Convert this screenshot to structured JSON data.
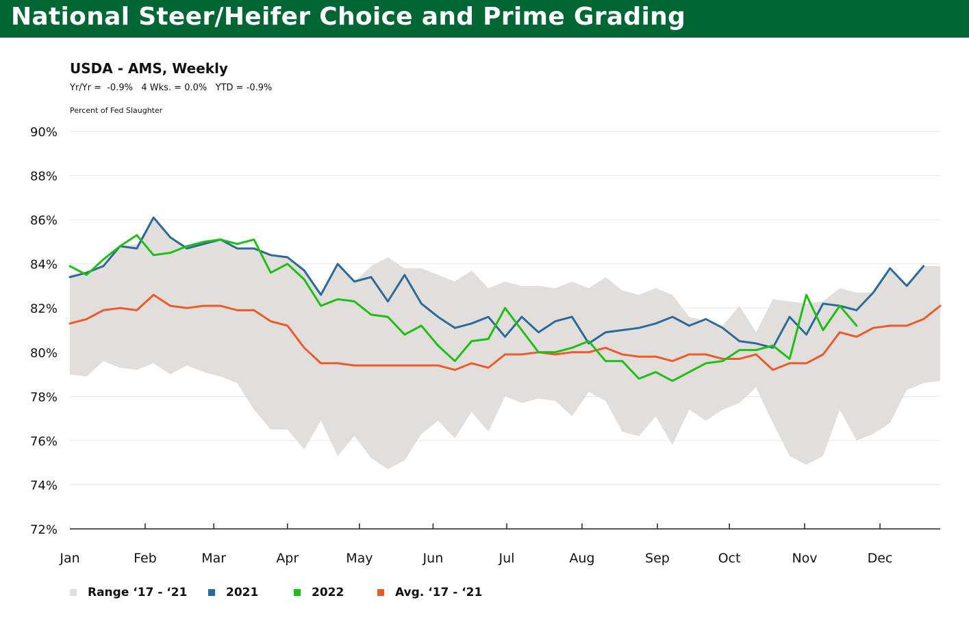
{
  "header": {
    "title": "National Steer/Heifer Choice and Prime Grading"
  },
  "subtitle": "USDA - AMS, Weekly",
  "stats": "Yr/Yr =  -0.9%   4 Wks. = 0.0%   YTD = -0.9%",
  "colors": {
    "banner": "#006633",
    "range": "#e1dedc",
    "y2021": "#2a6a99",
    "y2022": "#1cc012",
    "avg": "#ec5a2a",
    "grid": "#e6e6e6",
    "axis": "#222222"
  },
  "chart_data": {
    "type": "line",
    "ylabel": "Percent of Fed Slaughter",
    "ylim": [
      72,
      90
    ],
    "yticks": [
      "72%",
      "74%",
      "76%",
      "78%",
      "80%",
      "82%",
      "84%",
      "86%",
      "88%",
      "90%"
    ],
    "x_unit": "week of year",
    "xlim": [
      1,
      53
    ],
    "months": [
      {
        "label": "Jan",
        "week": 1.0
      },
      {
        "label": "Feb",
        "week": 5.5
      },
      {
        "label": "Mar",
        "week": 9.6
      },
      {
        "label": "Apr",
        "week": 14.0
      },
      {
        "label": "May",
        "week": 18.3
      },
      {
        "label": "Jun",
        "week": 22.7
      },
      {
        "label": "Jul",
        "week": 27.1
      },
      {
        "label": "Aug",
        "week": 31.6
      },
      {
        "label": "Sep",
        "week": 36.1
      },
      {
        "label": "Oct",
        "week": 40.4
      },
      {
        "label": "Nov",
        "week": 44.9
      },
      {
        "label": "Dec",
        "week": 49.4
      }
    ],
    "grid": true,
    "legend_position": "bottom",
    "range": {
      "name": "Range ‘17 - ‘21",
      "weeks": [
        1,
        2,
        3,
        4,
        5,
        6,
        7,
        8,
        9,
        10,
        11,
        12,
        13,
        14,
        15,
        16,
        17,
        18,
        19,
        20,
        21,
        22,
        23,
        24,
        25,
        26,
        27,
        28,
        29,
        30,
        31,
        32,
        33,
        34,
        35,
        36,
        37,
        38,
        39,
        40,
        41,
        42,
        43,
        44,
        45,
        46,
        47,
        48,
        49,
        50,
        51,
        52,
        53
      ],
      "high": [
        83.5,
        83.6,
        83.9,
        84.8,
        84.9,
        86.1,
        85.2,
        84.8,
        85.0,
        85.2,
        84.7,
        84.7,
        84.4,
        84.3,
        83.8,
        82.7,
        84.0,
        83.2,
        83.9,
        84.3,
        83.8,
        83.8,
        83.5,
        83.2,
        83.7,
        82.9,
        83.2,
        83.0,
        83.0,
        82.9,
        83.2,
        82.9,
        83.4,
        82.8,
        82.6,
        82.9,
        82.6,
        81.6,
        81.4,
        81.2,
        82.1,
        80.9,
        82.4,
        82.3,
        82.2,
        82.3,
        82.9,
        82.7,
        82.7,
        83.7,
        83.1,
        83.9,
        83.9
      ],
      "low": [
        79.0,
        78.9,
        79.6,
        79.3,
        79.2,
        79.5,
        79.0,
        79.4,
        79.1,
        78.9,
        78.6,
        77.4,
        76.5,
        76.5,
        75.6,
        76.9,
        75.3,
        76.2,
        75.2,
        74.7,
        75.1,
        76.3,
        76.9,
        76.1,
        77.3,
        76.4,
        78.0,
        77.7,
        77.9,
        77.8,
        77.1,
        78.2,
        77.8,
        76.4,
        76.2,
        77.1,
        75.8,
        77.4,
        76.9,
        77.4,
        77.7,
        78.4,
        76.8,
        75.3,
        74.9,
        75.3,
        77.4,
        76.0,
        76.3,
        76.8,
        78.3,
        78.6,
        78.7
      ]
    },
    "series": [
      {
        "name": "2021",
        "x": [
          1,
          2,
          3,
          4,
          5,
          6,
          7,
          8,
          9,
          10,
          11,
          12,
          13,
          14,
          15,
          16,
          17,
          18,
          19,
          20,
          21,
          22,
          23,
          24,
          25,
          26,
          27,
          28,
          29,
          30,
          31,
          32,
          33,
          34,
          35,
          36,
          37,
          38,
          39,
          40,
          41,
          42,
          43,
          44,
          45,
          46,
          47,
          48,
          49,
          50,
          51,
          52
        ],
        "values": [
          83.4,
          83.6,
          83.9,
          84.8,
          84.7,
          86.1,
          85.2,
          84.7,
          84.9,
          85.1,
          84.7,
          84.7,
          84.4,
          84.3,
          83.7,
          82.6,
          84.0,
          83.2,
          83.4,
          82.3,
          83.5,
          82.2,
          81.6,
          81.1,
          81.3,
          81.6,
          80.7,
          81.6,
          80.9,
          81.4,
          81.6,
          80.4,
          80.9,
          81.0,
          81.1,
          81.3,
          81.6,
          81.2,
          81.5,
          81.1,
          80.5,
          80.4,
          80.2,
          81.6,
          80.8,
          82.2,
          82.1,
          81.9,
          82.7,
          83.8,
          83.0,
          83.9
        ]
      },
      {
        "name": "2022",
        "x": [
          1,
          2,
          3,
          4,
          5,
          6,
          7,
          8,
          9,
          10,
          11,
          12,
          13,
          14,
          15,
          16,
          17,
          18,
          19,
          20,
          21,
          22,
          23,
          24,
          25,
          26,
          27,
          28,
          29,
          30,
          31,
          32,
          33,
          34,
          35,
          36,
          37,
          38,
          39,
          40,
          41,
          42,
          43,
          44,
          45,
          46,
          47,
          48
        ],
        "values": [
          83.9,
          83.5,
          84.2,
          84.8,
          85.3,
          84.4,
          84.5,
          84.8,
          85.0,
          85.1,
          84.9,
          85.1,
          83.6,
          84.0,
          83.3,
          82.1,
          82.4,
          82.3,
          81.7,
          81.6,
          80.8,
          81.2,
          80.3,
          79.6,
          80.5,
          80.6,
          82.0,
          81.0,
          80.0,
          80.0,
          80.2,
          80.5,
          79.6,
          79.6,
          78.8,
          79.1,
          78.7,
          79.1,
          79.5,
          79.6,
          80.1,
          80.1,
          80.3,
          79.7,
          82.6,
          81.0,
          82.1,
          81.2
        ]
      },
      {
        "name": "Avg. ‘17 - ‘21",
        "x": [
          1,
          2,
          3,
          4,
          5,
          6,
          7,
          8,
          9,
          10,
          11,
          12,
          13,
          14,
          15,
          16,
          17,
          18,
          19,
          20,
          21,
          22,
          23,
          24,
          25,
          26,
          27,
          28,
          29,
          30,
          31,
          32,
          33,
          34,
          35,
          36,
          37,
          38,
          39,
          40,
          41,
          42,
          43,
          44,
          45,
          46,
          47,
          48,
          49,
          50,
          51,
          52,
          53
        ],
        "values": [
          81.3,
          81.5,
          81.9,
          82.0,
          81.9,
          82.6,
          82.1,
          82.0,
          82.1,
          82.1,
          81.9,
          81.9,
          81.4,
          81.2,
          80.2,
          79.5,
          79.5,
          79.4,
          79.4,
          79.4,
          79.4,
          79.4,
          79.4,
          79.2,
          79.5,
          79.3,
          79.9,
          79.9,
          80.0,
          79.9,
          80.0,
          80.0,
          80.2,
          79.9,
          79.8,
          79.8,
          79.6,
          79.9,
          79.9,
          79.7,
          79.7,
          79.9,
          79.2,
          79.5,
          79.5,
          79.9,
          80.9,
          80.7,
          81.1,
          81.2,
          81.2,
          81.5,
          82.1
        ]
      }
    ]
  },
  "legend": [
    {
      "label": "Range ‘17 - ‘21",
      "color": "#e1dedc"
    },
    {
      "label": "2021",
      "color": "#2a6a99"
    },
    {
      "label": "2022",
      "color": "#1cc012"
    },
    {
      "label": "Avg. ‘17 - ‘21",
      "color": "#ec5a2a"
    }
  ]
}
